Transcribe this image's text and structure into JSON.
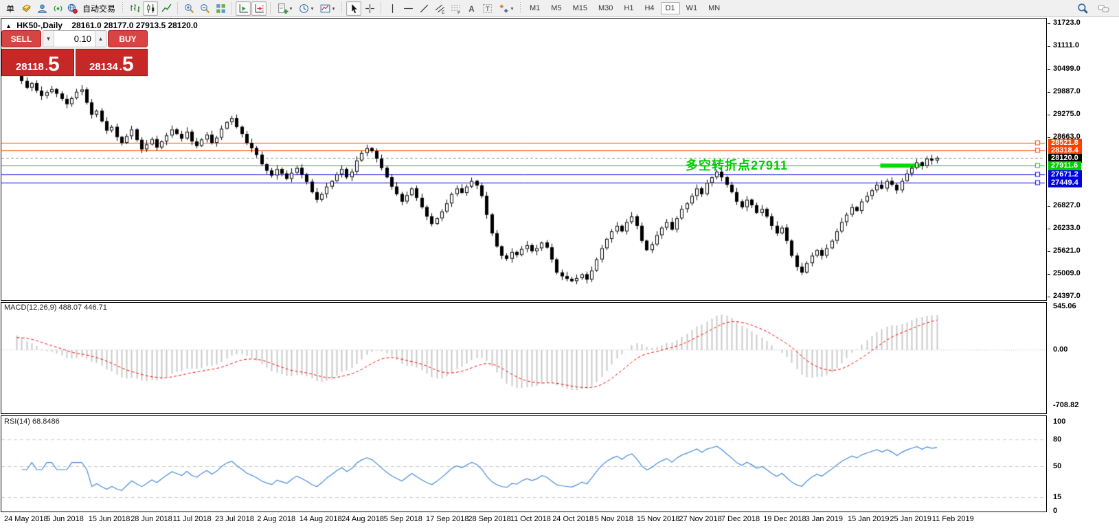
{
  "toolbar": {
    "new_order_label": "单",
    "auto_trading_label": "自动交易",
    "timeframes": [
      "M1",
      "M5",
      "M15",
      "M30",
      "H1",
      "H4",
      "D1",
      "W1",
      "MN"
    ],
    "active_timeframe": "D1",
    "icon_names": [
      "gold-icon",
      "community-icon",
      "signals-icon",
      "auto-trading-icon",
      "bar-chart-icon",
      "candlestick-chart-icon",
      "line-chart-icon",
      "zoom-in-icon",
      "zoom-out-icon",
      "tile-windows-icon",
      "auto-scroll-icon",
      "chart-shift-icon",
      "new-chart-icon",
      "periodicity-icon",
      "templates-icon",
      "cursor-icon",
      "crosshair-icon",
      "vertical-line-icon",
      "horizontal-line-icon",
      "trendline-icon",
      "equidistant-channel-icon",
      "fibonacci-icon",
      "text-icon",
      "text-label-icon",
      "arrows-icon",
      "search-icon",
      "chat-icon"
    ]
  },
  "chart_header": {
    "collapse_icon": "▲",
    "symbol_period": "HK50-,Daily",
    "ohlc": "28161.0 28177.0 27913.5 28120.0"
  },
  "trade_panel": {
    "sell_label": "SELL",
    "buy_label": "BUY",
    "volume": "0.10",
    "spinner_down": "▼",
    "spinner_up": "▲",
    "decimal_sep": ".",
    "sell_price_int": "28118",
    "sell_price_frac": "5",
    "buy_price_int": "28134",
    "buy_price_frac": "5"
  },
  "annotation": {
    "turning_point_text": "多空转折点27911",
    "color": "#00cc00"
  },
  "indicator_labels": {
    "macd": "MACD(12,26,9) 488.07 446.71",
    "rsi": "RSI(14) 68.8486"
  },
  "chart_data": {
    "type": "candlestick",
    "symbol": "HK50-",
    "period": "Daily",
    "last_ohlc": [
      28161.0,
      28177.0,
      27913.5,
      28120.0
    ],
    "bid": 28118.5,
    "ask": 28134.5,
    "price_range": [
      24330,
      31851
    ],
    "price_ticks": [
      "31723.0",
      "31111.0",
      "30499.0",
      "29887.0",
      "29275.0",
      "28663.0",
      "26827.0",
      "26233.0",
      "25621.0",
      "25009.0",
      "24397.0"
    ],
    "levels": [
      {
        "label": "28521.8",
        "price": 28521.8,
        "color": "#ff4000",
        "type": "resistance"
      },
      {
        "label": "28318.4",
        "price": 28318.4,
        "color": "#ff4000",
        "type": "resistance"
      },
      {
        "label": "28120.0",
        "price": 28120.0,
        "color": "#000000",
        "type": "current"
      },
      {
        "label": "27911.6",
        "price": 27911.6,
        "color": "#00cc00",
        "type": "pivot"
      },
      {
        "label": "27671.2",
        "price": 27671.2,
        "color": "#0000e0",
        "type": "support"
      },
      {
        "label": "27449.4",
        "price": 27449.4,
        "color": "#0000e0",
        "type": "support"
      }
    ],
    "green_segment": {
      "price": 27911.6,
      "from": 173,
      "to": 181,
      "color": "#00dd00",
      "thickness": 6
    },
    "closes": [
      30420,
      30180,
      30000,
      30120,
      29920,
      29780,
      29880,
      29960,
      29840,
      29700,
      29560,
      29720,
      29890,
      29950,
      29600,
      29280,
      29380,
      29100,
      28850,
      28950,
      28680,
      28520,
      28700,
      28880,
      28600,
      28350,
      28480,
      28620,
      28400,
      28560,
      28720,
      28880,
      28760,
      28640,
      28820,
      28560,
      28440,
      28610,
      28740,
      28520,
      28660,
      28900,
      29080,
      29180,
      28950,
      28760,
      28520,
      28380,
      28200,
      27950,
      27780,
      27650,
      27820,
      27700,
      27560,
      27720,
      27850,
      27680,
      27480,
      27200,
      27000,
      27150,
      27350,
      27500,
      27680,
      27820,
      27600,
      27750,
      28050,
      28250,
      28380,
      28300,
      28100,
      27850,
      27600,
      27350,
      27150,
      26950,
      27120,
      27300,
      27050,
      26800,
      26550,
      26350,
      26500,
      26680,
      26900,
      27150,
      27300,
      27180,
      27350,
      27500,
      27380,
      27100,
      26600,
      26100,
      25750,
      25500,
      25420,
      25600,
      25520,
      25680,
      25780,
      25620,
      25700,
      25850,
      25720,
      25400,
      25050,
      24950,
      24880,
      24820,
      24900,
      25000,
      24860,
      25100,
      25400,
      25700,
      25950,
      26150,
      26300,
      26150,
      26400,
      26550,
      26300,
      25900,
      25650,
      25800,
      26050,
      26250,
      26400,
      26200,
      26500,
      26750,
      26900,
      27100,
      27300,
      27150,
      27450,
      27600,
      27750,
      27600,
      27400,
      27200,
      26950,
      26800,
      27000,
      26850,
      26650,
      26750,
      26550,
      26300,
      26100,
      26250,
      25900,
      25500,
      25200,
      25050,
      25300,
      25500,
      25650,
      25500,
      25700,
      25900,
      26150,
      26400,
      26600,
      26800,
      26700,
      26950,
      27100,
      27250,
      27400,
      27300,
      27500,
      27400,
      27250,
      27500,
      27700,
      27850,
      28000,
      27900,
      28100,
      28050,
      28120
    ],
    "macd": {
      "params": "12,26,9",
      "value": 488.07,
      "signal_value": 446.71,
      "axis_ticks": [
        "545.06",
        "0.00",
        "-708.82"
      ],
      "range": [
        -800,
        602
      ],
      "histogram_color": "#c8c8c8",
      "signal_color": "#ff0000"
    },
    "rsi": {
      "period": 14,
      "value": 68.8486,
      "axis_ticks": [
        "100",
        "80",
        "50",
        "15",
        "0"
      ],
      "levels": [
        80,
        50,
        15
      ],
      "range": [
        0,
        105
      ],
      "line_color": "#4189d8"
    },
    "date_labels": [
      "24 May 2018",
      "5 Jun 2018",
      "15 Jun 2018",
      "28 Jun 2018",
      "11 Jul 2018",
      "23 Jul 2018",
      "2 Aug 2018",
      "14 Aug 2018",
      "24 Aug 2018",
      "5 Sep 2018",
      "17 Sep 2018",
      "28 Sep 2018",
      "11 Oct 2018",
      "24 Oct 2018",
      "5 Nov 2018",
      "15 Nov 2018",
      "27 Nov 2018",
      "7 Dec 2018",
      "19 Dec 2018",
      "3 Jan 2019",
      "15 Jan 2019",
      "25 Jan 2019",
      "11 Feb 2019"
    ]
  }
}
